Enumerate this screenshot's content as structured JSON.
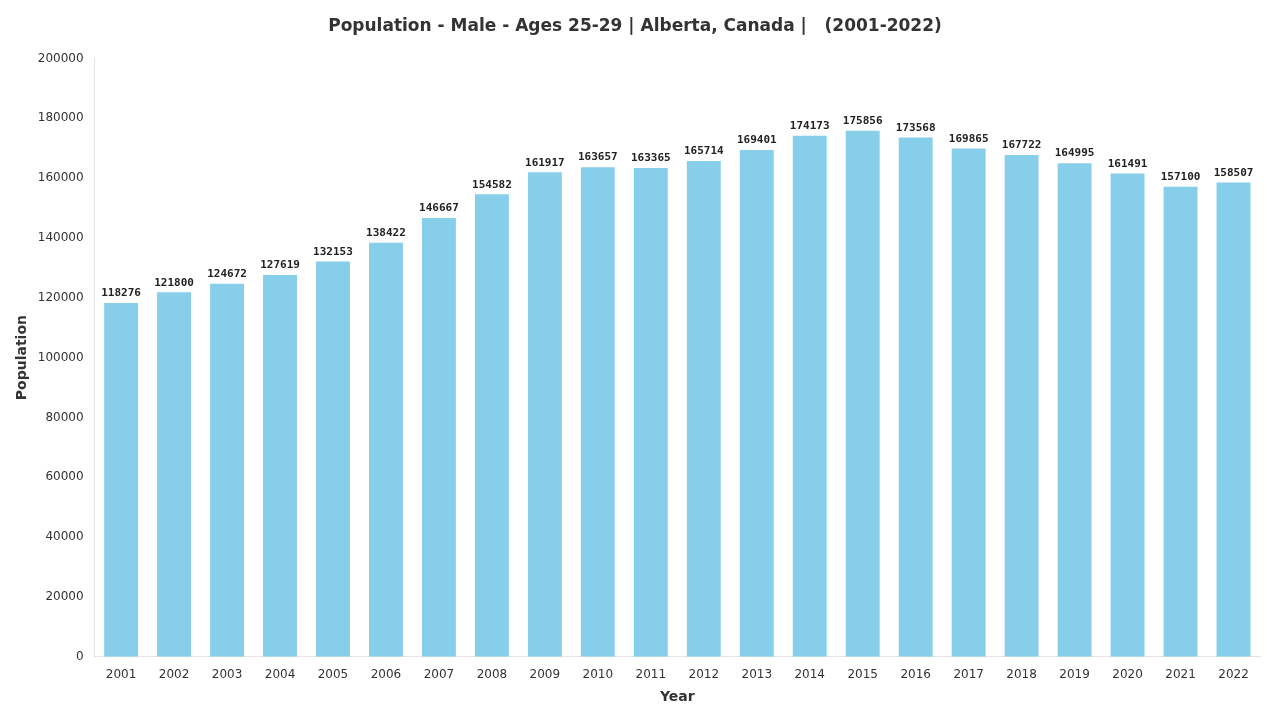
{
  "chart_data": {
    "type": "bar",
    "title": "Population - Male - Ages 25-29 | Alberta, Canada |   (2001-2022)",
    "xlabel": "Year",
    "ylabel": "Population",
    "categories": [
      "2001",
      "2002",
      "2003",
      "2004",
      "2005",
      "2006",
      "2007",
      "2008",
      "2009",
      "2010",
      "2011",
      "2012",
      "2013",
      "2014",
      "2015",
      "2016",
      "2017",
      "2018",
      "2019",
      "2020",
      "2021",
      "2022"
    ],
    "values": [
      118276,
      121800,
      124672,
      127619,
      132153,
      138422,
      146667,
      154582,
      161917,
      163657,
      163365,
      165714,
      169401,
      174173,
      175856,
      173568,
      169865,
      167722,
      164995,
      161491,
      157100,
      158507
    ],
    "color": "#87CEEB",
    "ylim": [
      0,
      200000
    ],
    "yticks": [
      0,
      20000,
      40000,
      60000,
      80000,
      100000,
      120000,
      140000,
      160000,
      180000,
      200000
    ],
    "grid": false,
    "data_labels": true
  }
}
